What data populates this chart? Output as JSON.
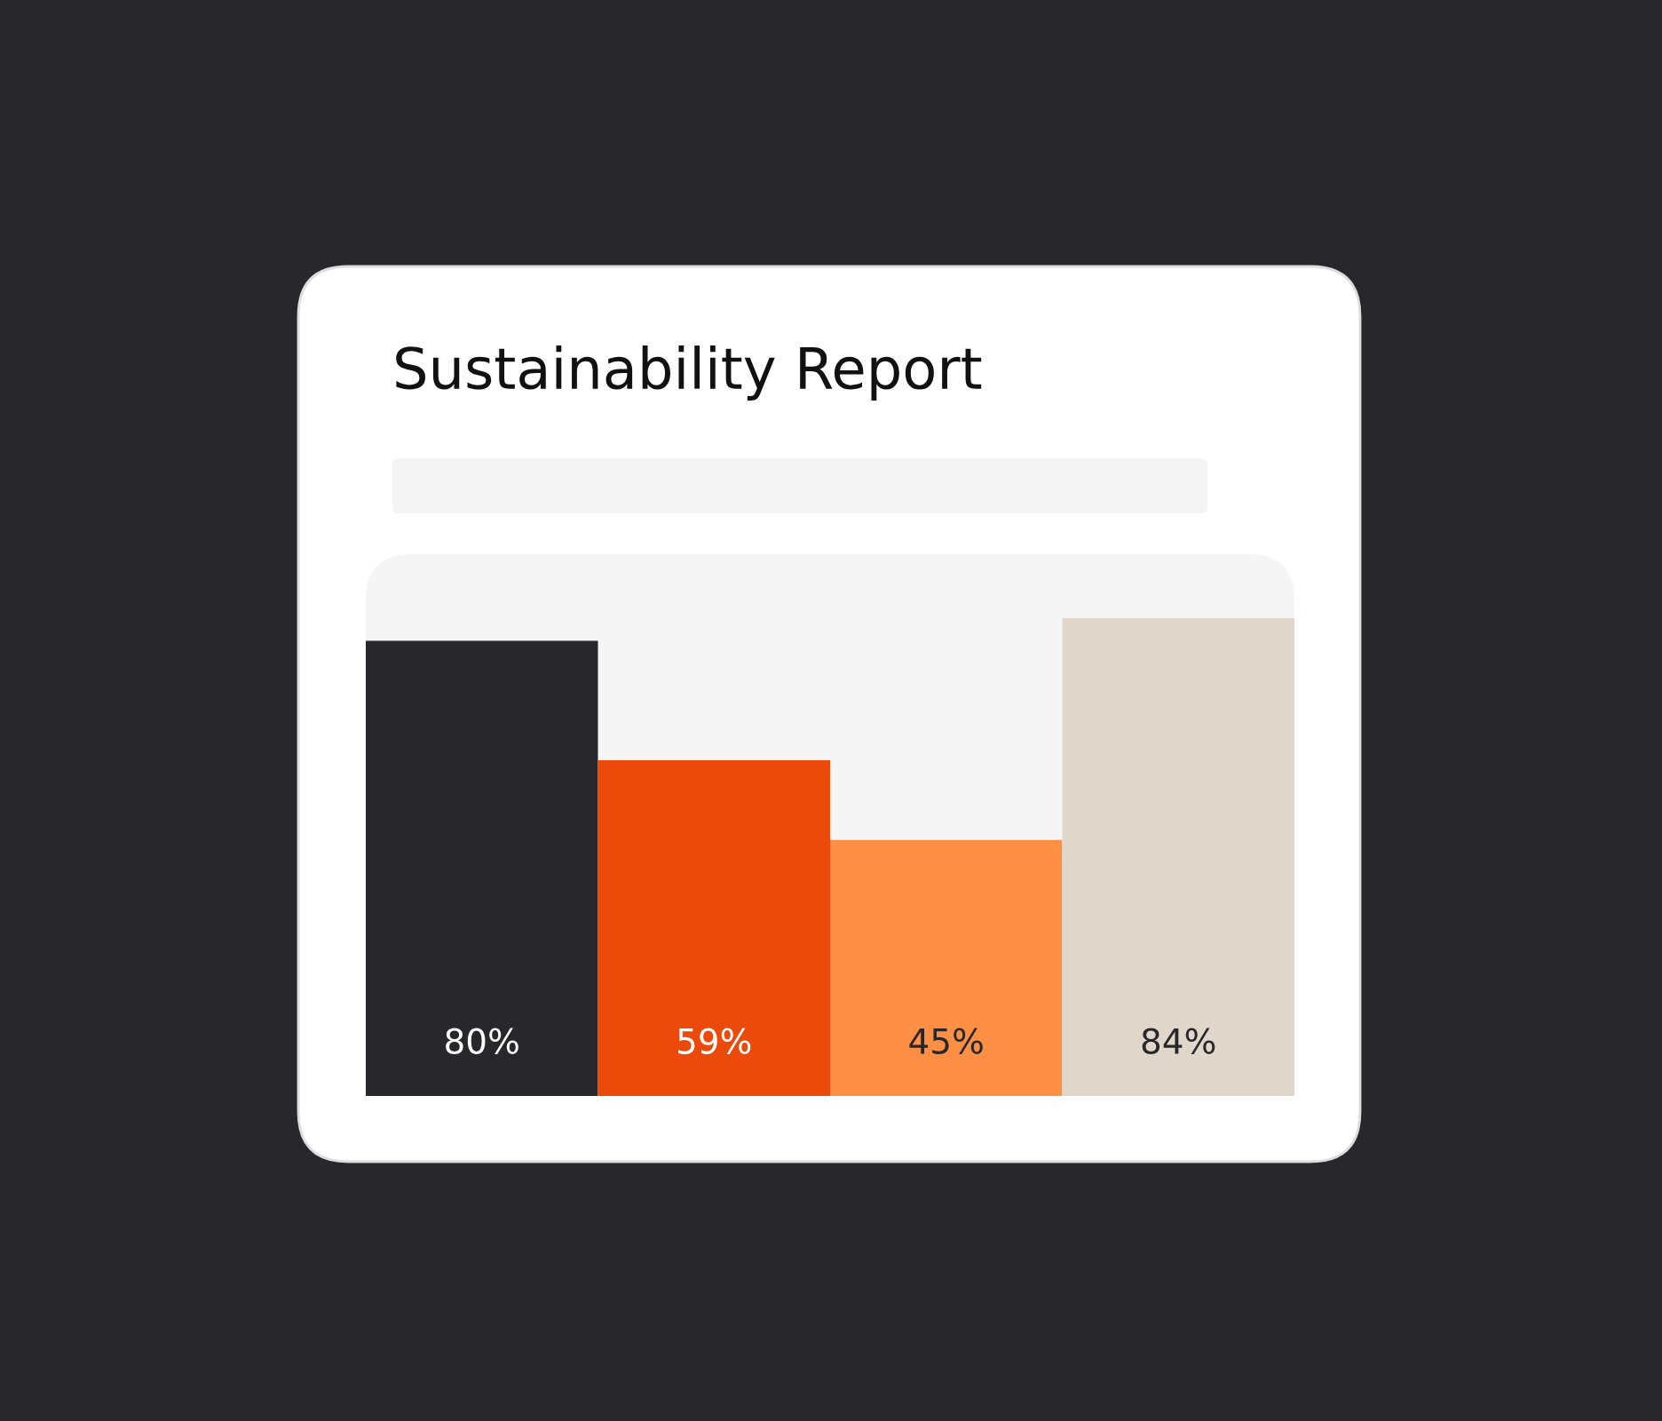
{
  "chart_data": {
    "type": "bar",
    "title": "Sustainability Report",
    "tick_labels": false,
    "categories": [
      null,
      null,
      null,
      null
    ],
    "values": [
      80,
      59,
      45,
      84
    ],
    "colors": [
      "#28272b",
      "#ec4a0a",
      "#fe8f45",
      "#e1d6ca"
    ],
    "value_labels": [
      "80%",
      "59%",
      "45%",
      "84%"
    ]
  }
}
